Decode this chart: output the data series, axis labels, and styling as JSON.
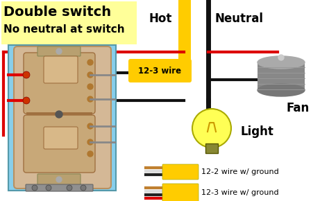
{
  "bg_color": "#ffffff",
  "title_line1": "Double switch",
  "title_line2": "No neutral at switch",
  "title_bg": "#ffff99",
  "title_color": "#000000",
  "switch_box_color": "#87ceeb",
  "switch_body_color": "#d4b896",
  "wire_red": "#dd0000",
  "wire_black": "#111111",
  "wire_white": "#dddddd",
  "wire_bare": "#c8a060",
  "wire_yellow_sheath": "#ffcc00",
  "label_hot": "Hot",
  "label_neutral": "Neutral",
  "label_fan": "Fan",
  "label_light": "Light",
  "label_wire_label": "12-3 wire",
  "label_12_2": "12-2 wire w/ ground",
  "label_12_3": "12-3 wire w/ ground",
  "figsize": [
    4.74,
    2.9
  ],
  "dpi": 100,
  "title_fontsize": 14,
  "label_fontsize": 12,
  "legend_fontsize": 8
}
